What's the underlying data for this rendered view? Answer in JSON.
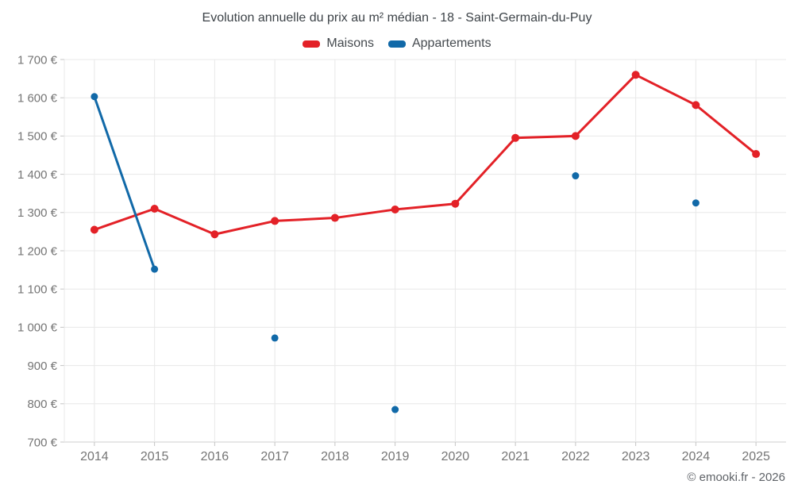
{
  "header": {
    "title": "Evolution annuelle du prix au m² médian - 18 - Saint-Germain-du-Puy"
  },
  "legend": {
    "items": [
      {
        "label": "Maisons",
        "color": "#e32127"
      },
      {
        "label": "Appartements",
        "color": "#1169a8"
      }
    ]
  },
  "footer": {
    "copyright": "© emooki.fr - 2026"
  },
  "chart_data": {
    "type": "line",
    "title": "Evolution annuelle du prix au m² médian - 18 - Saint-Germain-du-Puy",
    "categories": [
      "2014",
      "2015",
      "2016",
      "2017",
      "2018",
      "2019",
      "2020",
      "2021",
      "2022",
      "2023",
      "2024",
      "2025"
    ],
    "series": [
      {
        "name": "Maisons",
        "color": "#e32127",
        "values": [
          1255,
          1310,
          1243,
          1278,
          1286,
          1308,
          1323,
          1495,
          1500,
          1660,
          1581,
          1453
        ]
      },
      {
        "name": "Appartements",
        "color": "#1169a8",
        "values": [
          1603,
          1152,
          null,
          972,
          null,
          785,
          null,
          null,
          1396,
          null,
          1325,
          null
        ]
      }
    ],
    "xlabel": "",
    "ylabel": "",
    "ylim": [
      700,
      1700
    ],
    "ytick_step": 100,
    "ytick_labels": [
      "1 700 €",
      "1 600 €",
      "1 500 €",
      "1 400 €",
      "1 300 €",
      "1 200 €",
      "1 100 €",
      "1 000 €",
      "900 €",
      "800 €",
      "700 €"
    ],
    "currency": "€",
    "grid": true,
    "legend_position": "top"
  }
}
